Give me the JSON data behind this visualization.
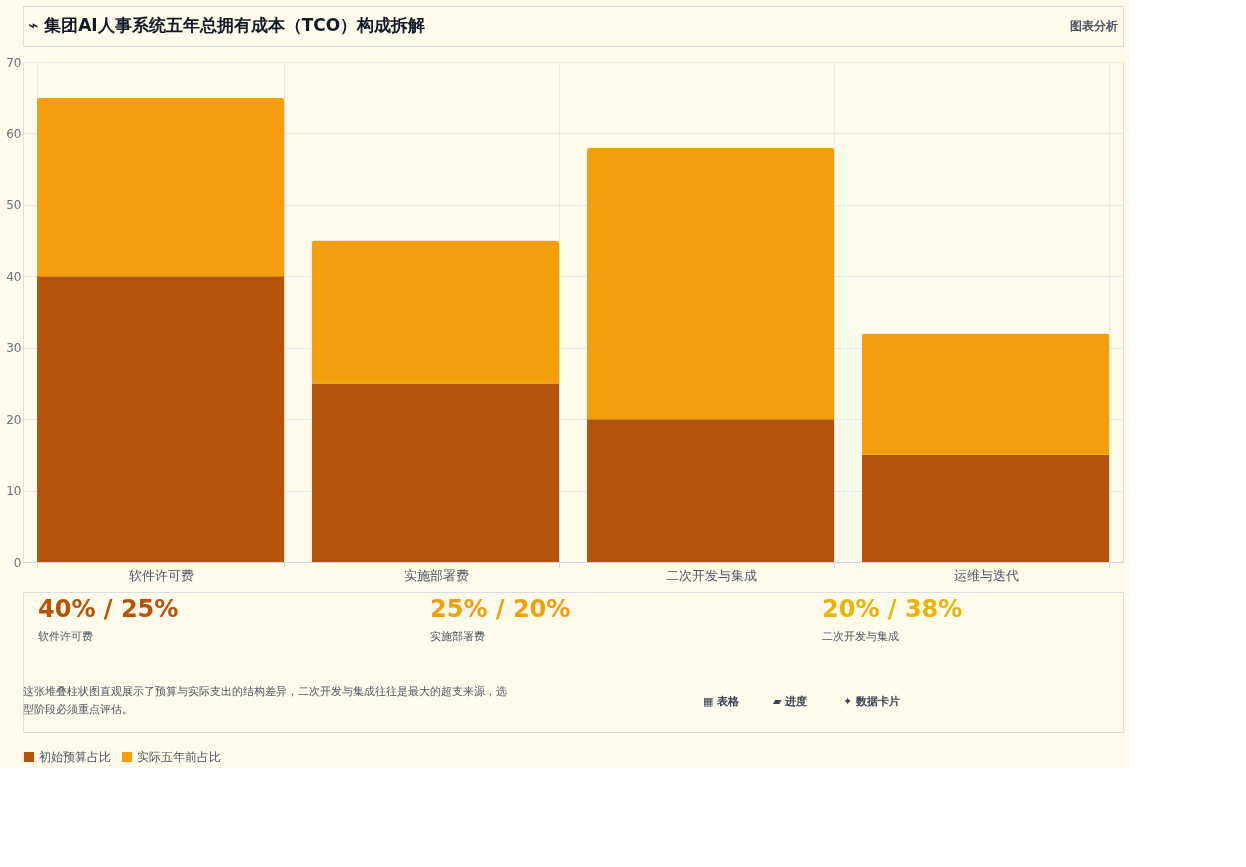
{
  "chart_data": {
    "type": "bar",
    "title": "⌁ 集团AI人事系统五年总拥有成本（TCO）构成拆解",
    "categories": [
      "软件许可费",
      "实施部署费",
      "二次开发与集成",
      "运维与迭代"
    ],
    "series": [
      {
        "name": "初始预算占比",
        "color": "#b45309",
        "values": [
          40,
          25,
          20,
          15
        ]
      },
      {
        "name": "实际五年前占比",
        "color": "#f59e0b",
        "values": [
          25,
          20,
          38,
          17
        ]
      }
    ],
    "stacked": true,
    "ylim": [
      0,
      70
    ],
    "yticks": [
      0,
      10,
      20,
      30,
      40,
      50,
      60,
      70
    ],
    "grid": true,
    "legend": "bottom",
    "annotations": [
      "图表分析",
      "40% / 25%",
      "软件许可费",
      "25% / 20%",
      "实施部署费",
      "20% / 38%",
      "二次开发与集成",
      "这张堆叠柱状图直观展示了预算与实际支出的结构差异，二次开发与集成往往是最大的超支来源，选型阶段必须重点评估。",
      "▦ 表格",
      "▰ 进度",
      "✦ 数据卡片"
    ]
  }
}
